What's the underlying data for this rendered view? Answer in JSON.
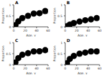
{
  "chart_data": [
    {
      "type": "scatter",
      "title": "A",
      "x_label": "Age, y",
      "y_label": "Proportion",
      "xlim": [
        0,
        60
      ],
      "xticks": [
        0,
        20,
        40,
        60
      ],
      "ylim": [
        0,
        1
      ],
      "yticks": [
        0,
        0.5,
        1
      ],
      "grid": false,
      "series": [
        {
          "type": "scatter",
          "color": "#000000",
          "marker": "circle",
          "x": [
            3,
            8,
            15,
            25,
            35,
            45,
            55
          ],
          "values": [
            0.08,
            0.25,
            0.4,
            0.5,
            0.6,
            0.62,
            0.72
          ]
        },
        {
          "type": "line",
          "color": "#333333",
          "line_style": "solid",
          "x": [
            0,
            10,
            20,
            30,
            40,
            50,
            60
          ],
          "values": [
            0.05,
            0.3,
            0.45,
            0.55,
            0.62,
            0.67,
            0.7
          ]
        },
        {
          "type": "line",
          "color": "#aaaaaa",
          "line_style": "solid",
          "x": [
            0,
            10,
            20,
            30,
            40,
            50,
            60
          ],
          "values": [
            0.02,
            0.24,
            0.39,
            0.49,
            0.55,
            0.59,
            0.6
          ]
        },
        {
          "type": "line",
          "color": "#aaaaaa",
          "line_style": "solid",
          "x": [
            0,
            10,
            20,
            30,
            40,
            50,
            60
          ],
          "values": [
            0.1,
            0.36,
            0.51,
            0.61,
            0.69,
            0.75,
            0.8
          ]
        }
      ]
    },
    {
      "type": "scatter",
      "title": "B",
      "x_label": "Age, y",
      "y_label": "Proportion",
      "xlim": [
        0,
        60
      ],
      "xticks": [
        0,
        20,
        40,
        60
      ],
      "ylim": [
        0,
        1
      ],
      "yticks": [
        0,
        0.5,
        1
      ],
      "grid": false,
      "series": [
        {
          "type": "scatter",
          "color": "#000000",
          "marker": "circle",
          "x": [
            3,
            8,
            15,
            25,
            35,
            45,
            55
          ],
          "values": [
            0.03,
            0.1,
            0.17,
            0.24,
            0.3,
            0.34,
            0.4
          ]
        },
        {
          "type": "line",
          "color": "#333333",
          "line_style": "solid",
          "x": [
            0,
            10,
            20,
            30,
            40,
            50,
            60
          ],
          "values": [
            0.02,
            0.12,
            0.2,
            0.26,
            0.31,
            0.35,
            0.38
          ]
        },
        {
          "type": "line",
          "color": "#aaaaaa",
          "line_style": "solid",
          "x": [
            0,
            10,
            20,
            30,
            40,
            50,
            60
          ],
          "values": [
            0.01,
            0.09,
            0.16,
            0.22,
            0.26,
            0.29,
            0.31
          ]
        },
        {
          "type": "line",
          "color": "#aaaaaa",
          "line_style": "solid",
          "x": [
            0,
            10,
            20,
            30,
            40,
            50,
            60
          ],
          "values": [
            0.04,
            0.15,
            0.24,
            0.3,
            0.36,
            0.41,
            0.45
          ]
        }
      ]
    },
    {
      "type": "scatter",
      "title": "C",
      "x_label": "Age, y",
      "y_label": "Proportion",
      "xlim": [
        0,
        60
      ],
      "xticks": [
        0,
        20,
        40,
        60
      ],
      "ylim": [
        0,
        1
      ],
      "yticks": [
        0,
        0.5,
        1
      ],
      "grid": false,
      "series": [
        {
          "type": "scatter",
          "color": "#000000",
          "marker": "circle",
          "x": [
            3,
            8,
            15,
            25,
            35,
            45,
            55
          ],
          "values": [
            0.1,
            0.3,
            0.45,
            0.52,
            0.6,
            0.61,
            0.66
          ]
        },
        {
          "type": "line",
          "color": "#333333",
          "line_style": "solid",
          "x": [
            0,
            10,
            20,
            30,
            40,
            50,
            60
          ],
          "values": [
            0.05,
            0.35,
            0.48,
            0.56,
            0.6,
            0.63,
            0.65
          ]
        },
        {
          "type": "line",
          "color": "#aaaaaa",
          "line_style": "solid",
          "x": [
            0,
            10,
            20,
            30,
            40,
            50,
            60
          ],
          "values": [
            0.02,
            0.29,
            0.42,
            0.5,
            0.53,
            0.55,
            0.56
          ]
        },
        {
          "type": "line",
          "color": "#aaaaaa",
          "line_style": "solid",
          "x": [
            0,
            10,
            20,
            30,
            40,
            50,
            60
          ],
          "values": [
            0.1,
            0.41,
            0.54,
            0.62,
            0.67,
            0.71,
            0.74
          ]
        }
      ]
    },
    {
      "type": "scatter",
      "title": "D",
      "x_label": "Age, y",
      "y_label": "Proportion",
      "xlim": [
        0,
        60
      ],
      "xticks": [
        0,
        20,
        40,
        60
      ],
      "ylim": [
        0,
        1
      ],
      "yticks": [
        0,
        0.5,
        1
      ],
      "grid": false,
      "series": [
        {
          "type": "scatter",
          "color": "#000000",
          "marker": "circle",
          "x": [
            3,
            8,
            15,
            25,
            35,
            45,
            55
          ],
          "values": [
            0.07,
            0.26,
            0.4,
            0.5,
            0.55,
            0.6,
            0.6
          ]
        },
        {
          "type": "line",
          "color": "#333333",
          "line_style": "solid",
          "x": [
            0,
            10,
            20,
            30,
            40,
            50,
            60
          ],
          "values": [
            0.05,
            0.3,
            0.44,
            0.52,
            0.57,
            0.6,
            0.62
          ]
        },
        {
          "type": "line",
          "color": "#aaaaaa",
          "line_style": "solid",
          "x": [
            0,
            10,
            20,
            30,
            40,
            50,
            60
          ],
          "values": [
            0.02,
            0.25,
            0.38,
            0.46,
            0.5,
            0.52,
            0.53
          ]
        },
        {
          "type": "line",
          "color": "#aaaaaa",
          "line_style": "solid",
          "x": [
            0,
            10,
            20,
            30,
            40,
            50,
            60
          ],
          "values": [
            0.09,
            0.35,
            0.5,
            0.58,
            0.64,
            0.68,
            0.71
          ]
        }
      ]
    }
  ]
}
